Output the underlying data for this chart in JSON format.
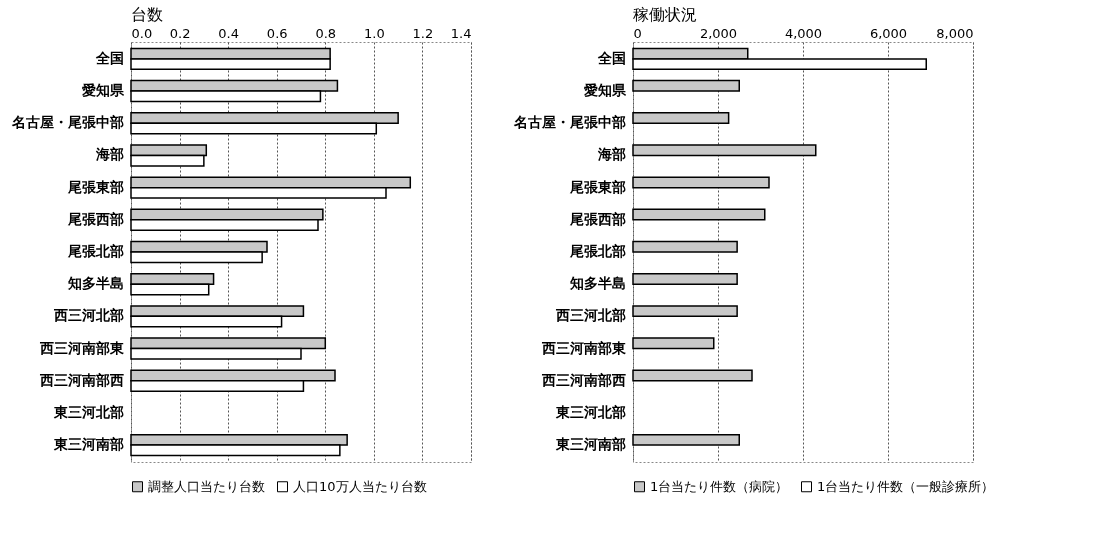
{
  "chart_data": [
    {
      "type": "bar",
      "orientation": "horizontal",
      "title": "台数",
      "categories": [
        "全国",
        "愛知県",
        "名古屋・尾張中部",
        "海部",
        "尾張東部",
        "尾張西部",
        "尾張北部",
        "知多半島",
        "西三河北部",
        "西三河南部東",
        "西三河南部西",
        "東三河北部",
        "東三河南部"
      ],
      "series": [
        {
          "name": "調整人口当たり台数",
          "color": "#c8c8c8",
          "values": [
            0.82,
            0.85,
            1.1,
            0.31,
            1.15,
            0.79,
            0.56,
            0.34,
            0.71,
            0.8,
            0.84,
            null,
            0.89
          ]
        },
        {
          "name": "人口10万人当たり台数",
          "color": "#ffffff",
          "values": [
            0.82,
            0.78,
            1.01,
            0.3,
            1.05,
            0.77,
            0.54,
            0.32,
            0.62,
            0.7,
            0.71,
            null,
            0.86
          ]
        }
      ],
      "xlim": [
        0,
        1.4
      ],
      "xticks": [
        {
          "value": 0,
          "label": "0.0"
        },
        {
          "value": 0.2,
          "label": "0.2"
        },
        {
          "value": 0.4,
          "label": "0.4"
        },
        {
          "value": 0.6,
          "label": "0.6"
        },
        {
          "value": 0.8,
          "label": "0.8"
        },
        {
          "value": 1,
          "label": "1.0"
        },
        {
          "value": 1.2,
          "label": "1.2"
        },
        {
          "value": 1.4,
          "label": "1.4"
        }
      ],
      "grid": "x",
      "legend": "bottom"
    },
    {
      "type": "bar",
      "orientation": "horizontal",
      "title": "稼働状況",
      "categories": [
        "全国",
        "愛知県",
        "名古屋・尾張中部",
        "海部",
        "尾張東部",
        "尾張西部",
        "尾張北部",
        "知多半島",
        "西三河北部",
        "西三河南部東",
        "西三河南部西",
        "東三河北部",
        "東三河南部"
      ],
      "series": [
        {
          "name": "1台当たり件数（病院）",
          "color": "#c8c8c8",
          "values": [
            2700,
            2500,
            2250,
            4300,
            3200,
            3100,
            2450,
            2450,
            2450,
            1900,
            2800,
            null,
            2500
          ]
        },
        {
          "name": "1台当たり件数（一般診療所）",
          "color": "#ffffff",
          "values": [
            6900,
            null,
            null,
            null,
            null,
            null,
            null,
            null,
            null,
            null,
            null,
            null,
            null
          ]
        }
      ],
      "xlim": [
        0,
        8000
      ],
      "xticks": [
        0,
        {
          "value": 2000,
          "label": "2,000"
        },
        {
          "value": 4000,
          "label": "4,000"
        },
        {
          "value": 6000,
          "label": "6,000"
        },
        {
          "value": 8000,
          "label": "8,000"
        }
      ],
      "grid": "x",
      "legend": "bottom"
    }
  ]
}
